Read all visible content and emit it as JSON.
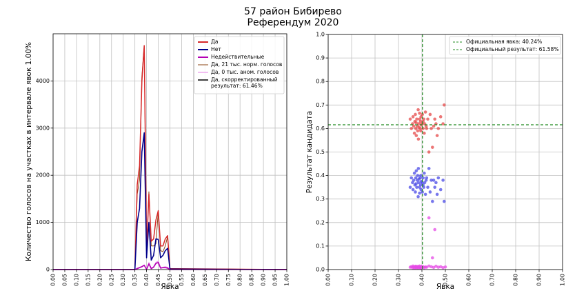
{
  "title_line1": "57 район Бибирево",
  "title_line2": "Референдум 2020",
  "colors": {
    "yes": "#d62728",
    "no": "#00008b",
    "invalid": "#b400b4",
    "yes_normal": "#8b4513",
    "yes_anom": "#e67de6",
    "corrected": "#000000",
    "grid": "#c0c0c0",
    "official_line": "#228b22",
    "scatter_yes": "#e64a4a",
    "scatter_no": "#4a4ae6",
    "scatter_invalid": "#e64ae6"
  },
  "chart_data": [
    {
      "type": "line",
      "xlabel": "Явка",
      "ylabel": "Количество голосов на участках в интервале явок 1.00%",
      "xlim": [
        0,
        1
      ],
      "ylim": [
        0,
        5000
      ],
      "xticks": [
        "0.00",
        "0.05",
        "0.10",
        "0.15",
        "0.20",
        "0.25",
        "0.30",
        "0.35",
        "0.40",
        "0.45",
        "0.50",
        "0.55",
        "0.60",
        "0.65",
        "0.70",
        "0.75",
        "0.80",
        "0.85",
        "0.90",
        "0.95",
        "1.00"
      ],
      "yticks": [
        "0",
        "1000",
        "2000",
        "3000",
        "4000"
      ],
      "legend": [
        {
          "label": "Да",
          "color_key": "yes",
          "width": 2
        },
        {
          "label": "Нет",
          "color_key": "no",
          "width": 2
        },
        {
          "label": "Недействительные",
          "color_key": "invalid",
          "width": 2
        },
        {
          "label": "Да, 21 тыс. норм. голосов",
          "color_key": "yes_normal",
          "width": 1
        },
        {
          "label": "Да, 0 тыс. аном. голосов",
          "color_key": "yes_anom",
          "width": 1
        },
        {
          "label": "Да, скорректированный",
          "label2": "результат: 61.46%",
          "color_key": "corrected",
          "width": 1.5
        }
      ],
      "x": [
        0.34,
        0.35,
        0.36,
        0.37,
        0.38,
        0.39,
        0.4,
        0.41,
        0.42,
        0.43,
        0.44,
        0.45,
        0.46,
        0.47,
        0.48,
        0.49,
        0.5
      ],
      "series": [
        {
          "name": "Да, 21 тыс. норм. голосов",
          "color_key": "yes_normal",
          "width": 1,
          "values": [
            0,
            0,
            1600,
            1900,
            4100,
            4750,
            400,
            1650,
            500,
            500,
            550,
            1230,
            400,
            380,
            500,
            700,
            20
          ]
        },
        {
          "name": "Да",
          "color_key": "yes",
          "width": 1.5,
          "values": [
            0,
            0,
            1800,
            2200,
            4000,
            4750,
            400,
            1600,
            600,
            650,
            1050,
            1250,
            500,
            500,
            650,
            720,
            20
          ]
        },
        {
          "name": "Нет",
          "color_key": "no",
          "width": 1.6,
          "values": [
            0,
            0,
            1000,
            1300,
            2500,
            2900,
            250,
            1000,
            200,
            300,
            650,
            640,
            250,
            300,
            400,
            450,
            10
          ]
        },
        {
          "name": "Да, 0 тыс. аном. голосов",
          "color_key": "yes_anom",
          "width": 1,
          "values": [
            0,
            0,
            30,
            50,
            70,
            100,
            10,
            150,
            30,
            60,
            150,
            180,
            40,
            50,
            60,
            50,
            0
          ]
        },
        {
          "name": "Недействительные",
          "color_key": "invalid",
          "width": 1.6,
          "values": [
            0,
            0,
            20,
            40,
            60,
            90,
            5,
            120,
            20,
            50,
            130,
            150,
            30,
            40,
            40,
            30,
            0
          ]
        }
      ]
    },
    {
      "type": "scatter",
      "xlabel": "Явка",
      "ylabel": "Результат кандидата",
      "xlim": [
        0,
        1
      ],
      "ylim": [
        0,
        1
      ],
      "xticks": [
        "0.00",
        "0.10",
        "0.20",
        "0.30",
        "0.40",
        "0.50",
        "0.60",
        "0.70",
        "0.80",
        "0.90",
        "1.00"
      ],
      "yticks": [
        "0.0",
        "0.1",
        "0.2",
        "0.3",
        "0.4",
        "0.5",
        "0.6",
        "0.7",
        "0.8",
        "0.9",
        "1.0"
      ],
      "official_turnout": 0.4024,
      "official_result": 0.6158,
      "legend": [
        {
          "label": "Официальная явка: 40.24%"
        },
        {
          "label": "Официальный результат: 61.58%"
        }
      ],
      "series": [
        {
          "name": "Да",
          "color_key": "scatter_yes",
          "points": [
            [
              0.35,
              0.64
            ],
            [
              0.355,
              0.6
            ],
            [
              0.36,
              0.62
            ],
            [
              0.362,
              0.65
            ],
            [
              0.365,
              0.61
            ],
            [
              0.368,
              0.58
            ],
            [
              0.37,
              0.63
            ],
            [
              0.372,
              0.66
            ],
            [
              0.374,
              0.6
            ],
            [
              0.376,
              0.57
            ],
            [
              0.378,
              0.64
            ],
            [
              0.38,
              0.61
            ],
            [
              0.382,
              0.59
            ],
            [
              0.384,
              0.68
            ],
            [
              0.386,
              0.62
            ],
            [
              0.388,
              0.605
            ],
            [
              0.39,
              0.64
            ],
            [
              0.392,
              0.6
            ],
            [
              0.394,
              0.63
            ],
            [
              0.396,
              0.65
            ],
            [
              0.398,
              0.615
            ],
            [
              0.4,
              0.62
            ],
            [
              0.402,
              0.66
            ],
            [
              0.405,
              0.6
            ],
            [
              0.408,
              0.64
            ],
            [
              0.41,
              0.58
            ],
            [
              0.412,
              0.62
            ],
            [
              0.415,
              0.67
            ],
            [
              0.418,
              0.61
            ],
            [
              0.42,
              0.6
            ],
            [
              0.425,
              0.64
            ],
            [
              0.43,
              0.5
            ],
            [
              0.435,
              0.66
            ],
            [
              0.44,
              0.6
            ],
            [
              0.445,
              0.52
            ],
            [
              0.45,
              0.61
            ],
            [
              0.455,
              0.64
            ],
            [
              0.46,
              0.62
            ],
            [
              0.465,
              0.57
            ],
            [
              0.47,
              0.6
            ],
            [
              0.48,
              0.65
            ],
            [
              0.49,
              0.62
            ],
            [
              0.495,
              0.7
            ],
            [
              0.385,
              0.555
            ],
            [
              0.395,
              0.59
            ],
            [
              0.375,
              0.625
            ],
            [
              0.405,
              0.63
            ],
            [
              0.39,
              0.665
            ]
          ]
        },
        {
          "name": "Нет",
          "color_key": "scatter_no",
          "points": [
            [
              0.35,
              0.35
            ],
            [
              0.355,
              0.39
            ],
            [
              0.36,
              0.37
            ],
            [
              0.362,
              0.34
            ],
            [
              0.365,
              0.38
            ],
            [
              0.368,
              0.41
            ],
            [
              0.37,
              0.36
            ],
            [
              0.372,
              0.33
            ],
            [
              0.374,
              0.39
            ],
            [
              0.376,
              0.42
            ],
            [
              0.378,
              0.35
            ],
            [
              0.38,
              0.38
            ],
            [
              0.382,
              0.4
            ],
            [
              0.384,
              0.31
            ],
            [
              0.386,
              0.37
            ],
            [
              0.388,
              0.385
            ],
            [
              0.39,
              0.35
            ],
            [
              0.392,
              0.39
            ],
            [
              0.394,
              0.36
            ],
            [
              0.396,
              0.34
            ],
            [
              0.398,
              0.375
            ],
            [
              0.4,
              0.37
            ],
            [
              0.402,
              0.33
            ],
            [
              0.405,
              0.39
            ],
            [
              0.408,
              0.35
            ],
            [
              0.41,
              0.41
            ],
            [
              0.412,
              0.37
            ],
            [
              0.415,
              0.32
            ],
            [
              0.418,
              0.38
            ],
            [
              0.42,
              0.39
            ],
            [
              0.425,
              0.35
            ],
            [
              0.43,
              0.43
            ],
            [
              0.435,
              0.33
            ],
            [
              0.44,
              0.38
            ],
            [
              0.445,
              0.29
            ],
            [
              0.45,
              0.38
            ],
            [
              0.455,
              0.35
            ],
            [
              0.46,
              0.37
            ],
            [
              0.465,
              0.32
            ],
            [
              0.47,
              0.39
            ],
            [
              0.48,
              0.34
            ],
            [
              0.49,
              0.38
            ],
            [
              0.495,
              0.29
            ],
            [
              0.385,
              0.43
            ],
            [
              0.395,
              0.4
            ],
            [
              0.375,
              0.365
            ],
            [
              0.405,
              0.36
            ],
            [
              0.39,
              0.325
            ]
          ]
        },
        {
          "name": "Недействительные",
          "color_key": "scatter_invalid",
          "points": [
            [
              0.35,
              0.01
            ],
            [
              0.355,
              0.012
            ],
            [
              0.36,
              0.008
            ],
            [
              0.362,
              0.015
            ],
            [
              0.365,
              0.01
            ],
            [
              0.368,
              0.006
            ],
            [
              0.37,
              0.012
            ],
            [
              0.372,
              0.01
            ],
            [
              0.374,
              0.014
            ],
            [
              0.376,
              0.008
            ],
            [
              0.378,
              0.011
            ],
            [
              0.38,
              0.009
            ],
            [
              0.382,
              0.013
            ],
            [
              0.384,
              0.007
            ],
            [
              0.386,
              0.012
            ],
            [
              0.388,
              0.01
            ],
            [
              0.39,
              0.015
            ],
            [
              0.392,
              0.008
            ],
            [
              0.394,
              0.011
            ],
            [
              0.396,
              0.006
            ],
            [
              0.398,
              0.013
            ],
            [
              0.4,
              0.01
            ],
            [
              0.405,
              0.012
            ],
            [
              0.41,
              0.008
            ],
            [
              0.415,
              0.011
            ],
            [
              0.42,
              0.01
            ],
            [
              0.43,
              0.015
            ],
            [
              0.44,
              0.012
            ],
            [
              0.45,
              0.009
            ],
            [
              0.46,
              0.014
            ],
            [
              0.47,
              0.01
            ],
            [
              0.48,
              0.012
            ],
            [
              0.49,
              0.008
            ],
            [
              0.5,
              0.011
            ],
            [
              0.455,
              0.17
            ],
            [
              0.43,
              0.22
            ],
            [
              0.445,
              0.05
            ]
          ]
        }
      ]
    }
  ]
}
